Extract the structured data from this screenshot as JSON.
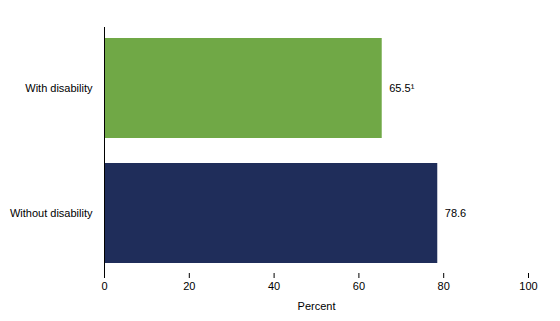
{
  "chart_data": {
    "type": "bar",
    "orientation": "horizontal",
    "categories": [
      "With disability",
      "Without disability"
    ],
    "values": [
      65.5,
      78.6
    ],
    "value_labels": [
      "65.5¹",
      "78.6"
    ],
    "colors": [
      "#70a846",
      "#1f2d5a"
    ],
    "x_label": "Percent",
    "xlim": [
      0,
      100
    ],
    "xticks": [
      0,
      20,
      40,
      60,
      80,
      100
    ],
    "grid": false,
    "data_labels": true
  }
}
